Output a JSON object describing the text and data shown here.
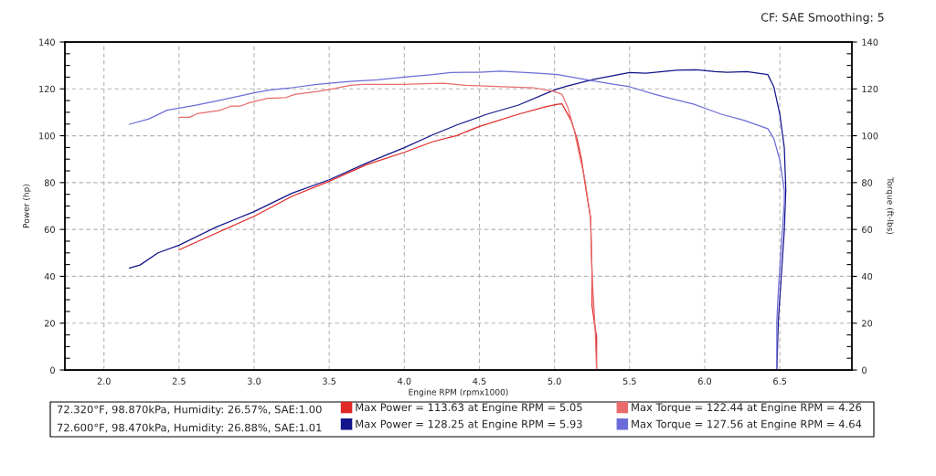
{
  "chart_data": {
    "type": "line",
    "xlabel": "Engine RPM (rpmx1000)",
    "ylabel": "Power (hp)",
    "y2label": "Torque (ft-lbs)",
    "annotations": [
      "CF: SAE Smoothing: 5",
      "72.320°F, 98.870kPa, Humidity: 26.57%, SAE:1.00",
      "72.600°F, 98.470kPa, Humidity: 26.88%, SAE:1.01"
    ],
    "xlim": [
      1.74,
      6.98
    ],
    "xticks": [
      {
        "value": 2.0,
        "label": "2.0"
      },
      {
        "value": 2.5,
        "label": "2.5"
      },
      {
        "value": 3.0,
        "label": "3.0"
      },
      {
        "value": 3.5,
        "label": "3.5"
      },
      {
        "value": 4.0,
        "label": "4.0"
      },
      {
        "value": 4.5,
        "label": "4.5"
      },
      {
        "value": 5.0,
        "label": "5.0"
      },
      {
        "value": 5.5,
        "label": "5.5"
      },
      {
        "value": 6.0,
        "label": "6.0"
      },
      {
        "value": 6.5,
        "label": "6.5"
      }
    ],
    "ylim": [
      0,
      140
    ],
    "yticks": [
      0,
      20,
      40,
      60,
      80,
      100,
      120,
      140
    ],
    "y2lim": [
      0,
      140
    ],
    "y2ticks": [
      0,
      20,
      40,
      60,
      80,
      100,
      120,
      140
    ],
    "grid": true,
    "legend": "bottom",
    "series": [
      {
        "name": "Max Power = 113.63 at Engine RPM = 5.05",
        "color": "#e02828",
        "axis": "y",
        "x": [
          2.5,
          2.75,
          3.0,
          3.25,
          3.5,
          3.75,
          4.0,
          4.19,
          4.35,
          4.5,
          4.76,
          4.94,
          5.02,
          5.05,
          5.11,
          5.15,
          5.18,
          5.21,
          5.24,
          5.25,
          5.25,
          5.27,
          5.28,
          5.28
        ],
        "values": [
          51.3,
          58.5,
          65.6,
          74.1,
          80.6,
          87.7,
          92.9,
          97.5,
          100.1,
          104.0,
          109.2,
          112.4,
          113.4,
          113.6,
          106.6,
          98.8,
          89.7,
          76.7,
          65.0,
          40.3,
          27.3,
          18.2,
          14.3,
          0
        ]
      },
      {
        "name": "Max Torque = 122.44 at Engine RPM = 4.26",
        "color": "#e86c6c",
        "axis": "y2",
        "x": [
          2.5,
          2.57,
          2.62,
          2.77,
          2.85,
          2.91,
          2.97,
          3.09,
          3.21,
          3.27,
          3.42,
          3.52,
          3.64,
          3.72,
          4.0,
          4.13,
          4.26,
          4.41,
          4.65,
          4.86,
          5.0,
          5.05,
          5.09,
          5.13,
          5.16,
          5.2,
          5.24,
          5.25,
          5.27,
          5.28
        ],
        "values": [
          107.9,
          107.9,
          109.4,
          110.8,
          112.7,
          112.7,
          114.1,
          116.0,
          116.3,
          117.6,
          118.9,
          120.0,
          121.5,
          121.9,
          121.9,
          122.2,
          122.4,
          121.5,
          120.9,
          120.5,
          118.9,
          117.6,
          111.8,
          102.7,
          93.6,
          81.9,
          65.0,
          40.3,
          18.2,
          0
        ]
      },
      {
        "name": "Max Power = 128.25 at Engine RPM = 5.93",
        "color": "#14148c",
        "axis": "y",
        "x": [
          2.17,
          2.24,
          2.36,
          2.5,
          2.75,
          3.0,
          3.25,
          3.5,
          3.75,
          4.0,
          4.19,
          4.35,
          4.55,
          4.76,
          5.0,
          5.08,
          5.26,
          5.5,
          5.61,
          5.81,
          5.93,
          6.07,
          6.15,
          6.28,
          6.42,
          6.46,
          6.5,
          6.53,
          6.54,
          6.53,
          6.51,
          6.49,
          6.48
        ],
        "values": [
          43.5,
          44.8,
          50.0,
          53.3,
          61.1,
          67.6,
          75.4,
          81.2,
          88.4,
          94.9,
          100.4,
          104.6,
          109.2,
          113.1,
          119.6,
          121.1,
          124.1,
          127.0,
          126.7,
          128.0,
          128.2,
          127.4,
          127.1,
          127.4,
          126.1,
          120.9,
          109.2,
          94.9,
          76.7,
          59.8,
          40.3,
          20.8,
          0
        ]
      },
      {
        "name": "Max Torque = 127.56 at Engine RPM = 4.64",
        "color": "#6c6cd8",
        "axis": "y2",
        "x": [
          2.17,
          2.3,
          2.42,
          2.5,
          2.62,
          2.79,
          3.0,
          3.11,
          3.25,
          3.42,
          3.5,
          3.64,
          3.82,
          4.0,
          4.19,
          4.31,
          4.5,
          4.64,
          4.89,
          5.02,
          5.2,
          5.37,
          5.5,
          5.67,
          5.77,
          5.93,
          6.11,
          6.26,
          6.42,
          6.46,
          6.5,
          6.53,
          6.53,
          6.51,
          6.49,
          6.48,
          6.48
        ],
        "values": [
          104.9,
          107.2,
          110.9,
          111.8,
          113.1,
          115.4,
          118.3,
          119.6,
          120.5,
          121.9,
          122.4,
          123.2,
          123.9,
          125.0,
          126.1,
          127.0,
          127.1,
          127.6,
          126.7,
          126.1,
          124.1,
          122.2,
          120.9,
          117.6,
          116.0,
          113.4,
          109.2,
          106.6,
          103.0,
          98.8,
          89.7,
          76.7,
          71.5,
          53.3,
          33.8,
          20.8,
          0
        ]
      }
    ]
  }
}
